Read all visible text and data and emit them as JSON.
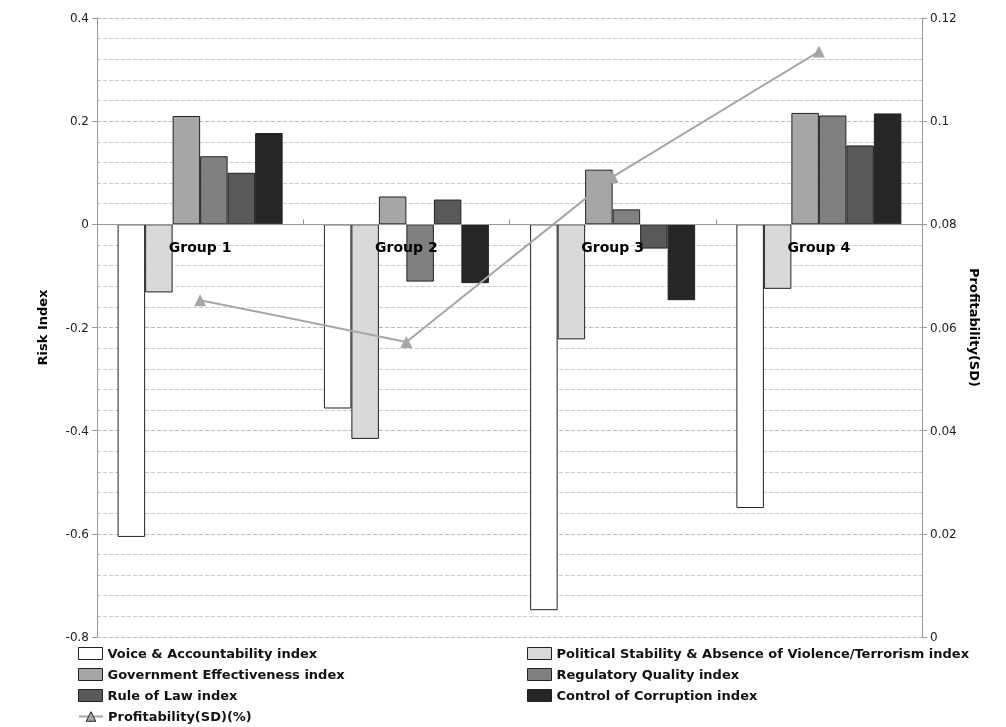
{
  "chart_data": {
    "type": "bar",
    "ylabel": "Risk Index",
    "y2label": "Profitability(SD)",
    "categories": [
      "Group 1",
      "Group 2",
      "Group 3",
      "Group 4"
    ],
    "series": [
      {
        "name": "Voice & Accountability index",
        "color": "#ffffff",
        "values": [
          -0.606,
          -0.357,
          -0.748,
          -0.55
        ]
      },
      {
        "name": "Political Stability & Absence of Violence/Terrorism index",
        "color": "#d9d9d9",
        "values": [
          -0.132,
          -0.416,
          -0.223,
          -0.125
        ]
      },
      {
        "name": "Government Effectiveness index",
        "color": "#a6a6a6",
        "values": [
          0.21,
          0.054,
          0.106,
          0.216
        ]
      },
      {
        "name": "Regulatory Quality index",
        "color": "#808080",
        "values": [
          0.132,
          -0.111,
          0.029,
          0.211
        ]
      },
      {
        "name": "Rule of Law index",
        "color": "#595959",
        "values": [
          0.1,
          0.048,
          -0.047,
          0.153
        ]
      },
      {
        "name": "Control of Corruption index",
        "color": "#262626",
        "values": [
          0.177,
          -0.114,
          -0.147,
          0.215
        ]
      },
      {
        "name": "Profitability(SD)(%)",
        "type": "line",
        "axis": "y2",
        "color": "#a6a6a6",
        "marker": "triangle",
        "values": [
          0.0653,
          0.0572,
          0.0892,
          0.1135
        ]
      }
    ],
    "ylim": [
      -0.8,
      0.4
    ],
    "yticks": [
      -0.8,
      -0.6,
      -0.4,
      -0.2,
      0,
      0.2,
      0.4
    ],
    "y2lim": [
      0,
      0.12
    ],
    "y2ticks": [
      0,
      0.02,
      0.04,
      0.06,
      0.08,
      0.1,
      0.12
    ],
    "grid": true,
    "legend": "bottom"
  }
}
